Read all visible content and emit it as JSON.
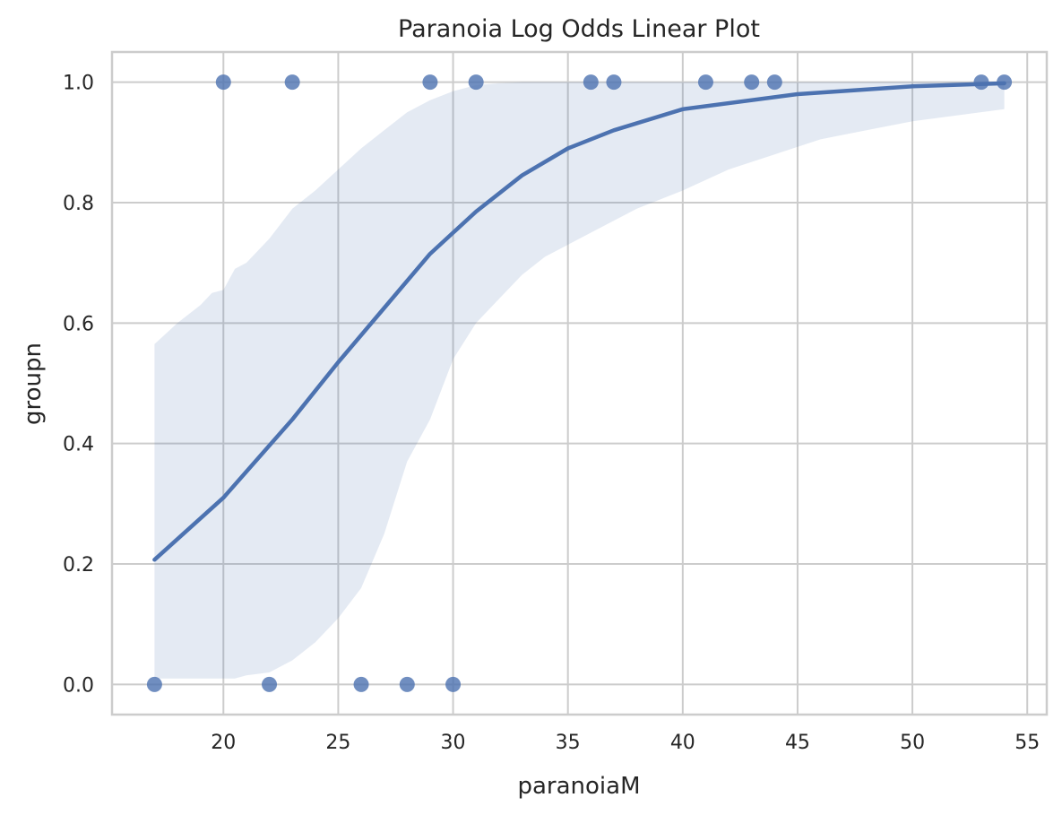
{
  "chart_data": {
    "type": "scatter",
    "title": "Paranoia Log Odds Linear Plot",
    "xlabel": "paranoiaM",
    "ylabel": "groupn",
    "xlim": [
      15.15,
      55.85
    ],
    "ylim": [
      -0.05,
      1.05
    ],
    "xticks": [
      20,
      25,
      30,
      35,
      40,
      45,
      50,
      55
    ],
    "xtick_labels": [
      "20",
      "25",
      "30",
      "35",
      "40",
      "45",
      "50",
      "55"
    ],
    "yticks": [
      0.0,
      0.2,
      0.4,
      0.6,
      0.8,
      1.0
    ],
    "ytick_labels": [
      "0.0",
      "0.2",
      "0.4",
      "0.6",
      "0.8",
      "1.0"
    ],
    "grid": true,
    "colors": {
      "series": "#4c72b0",
      "band": "#4c72b0",
      "grid": "#cccccc",
      "spine": "#cccccc"
    },
    "points": {
      "x": [
        20,
        23,
        29,
        31,
        36,
        37,
        41,
        43,
        44,
        53,
        54,
        17,
        22,
        26,
        28,
        30
      ],
      "y": [
        1,
        1,
        1,
        1,
        1,
        1,
        1,
        1,
        1,
        1,
        1,
        0,
        0,
        0,
        0,
        0
      ]
    },
    "fit_line": {
      "x": [
        17,
        20,
        23,
        25,
        27,
        29,
        31,
        33,
        35,
        37,
        40,
        45,
        50,
        54
      ],
      "y": [
        0.207,
        0.31,
        0.44,
        0.535,
        0.625,
        0.715,
        0.785,
        0.845,
        0.89,
        0.92,
        0.955,
        0.98,
        0.993,
        0.998
      ]
    },
    "confidence_band": {
      "x": [
        17,
        18,
        19,
        19.5,
        20,
        20.5,
        21,
        22,
        23,
        24,
        25,
        26,
        27,
        28,
        29,
        30,
        31,
        32,
        33,
        34,
        36,
        38,
        40,
        42,
        44,
        46,
        48,
        50,
        52,
        54
      ],
      "upper": [
        0.565,
        0.6,
        0.63,
        0.65,
        0.655,
        0.69,
        0.7,
        0.74,
        0.79,
        0.82,
        0.855,
        0.89,
        0.92,
        0.95,
        0.97,
        0.985,
        0.995,
        0.998,
        1.0,
        1.0,
        1.0,
        1.0,
        1.0,
        1.0,
        1.0,
        1.0,
        1.0,
        1.0,
        1.0,
        1.0
      ],
      "lower": [
        0.01,
        0.01,
        0.01,
        0.01,
        0.01,
        0.01,
        0.015,
        0.02,
        0.04,
        0.07,
        0.11,
        0.16,
        0.25,
        0.37,
        0.44,
        0.54,
        0.6,
        0.64,
        0.68,
        0.71,
        0.75,
        0.79,
        0.82,
        0.855,
        0.88,
        0.905,
        0.92,
        0.935,
        0.945,
        0.955
      ]
    }
  }
}
